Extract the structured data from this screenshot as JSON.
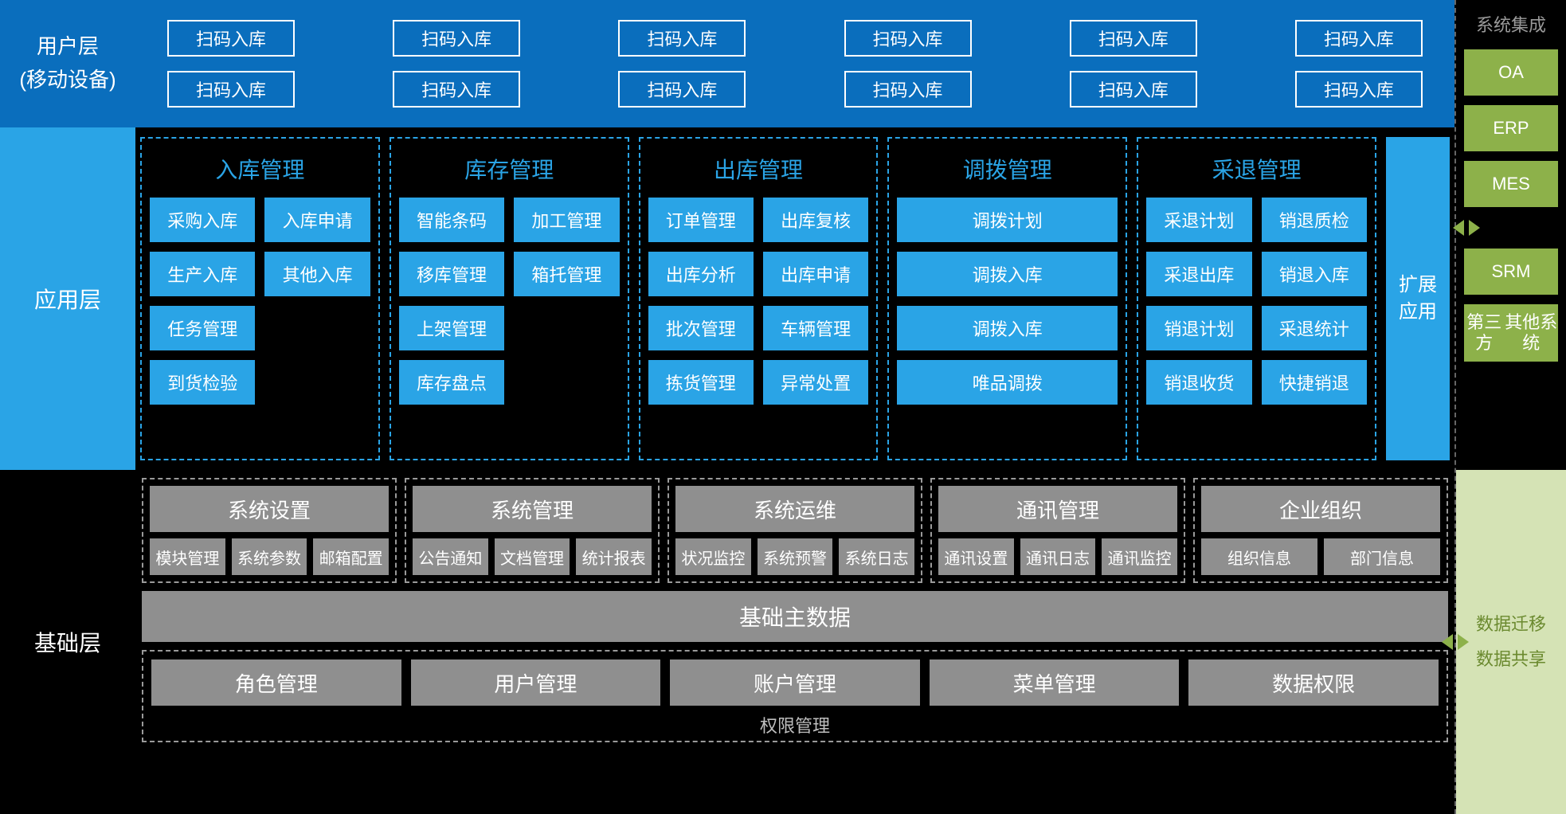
{
  "colors": {
    "blue_dark": "#0a6ebd",
    "blue_light": "#2aa4e6",
    "black": "#000000",
    "gray_box": "#8f8f8f",
    "gray_dash": "#9a9a9a",
    "green": "#8db14a",
    "green_pale": "#d5e3b5"
  },
  "user_layer": {
    "label_line1": "用户层",
    "label_line2": "(移动设备)",
    "scan_label": "扫码入库",
    "cols": 6,
    "rows": 2
  },
  "app_layer": {
    "label": "应用层",
    "modules": [
      {
        "title": "入库管理",
        "layout": "two",
        "items": [
          "采购入库",
          "入库申请",
          "生产入库",
          "其他入库",
          "任务管理",
          "",
          "到货检验",
          ""
        ]
      },
      {
        "title": "库存管理",
        "layout": "two",
        "items": [
          "智能条码",
          "加工管理",
          "移库管理",
          "箱托管理",
          "上架管理",
          "",
          "库存盘点",
          ""
        ]
      },
      {
        "title": "出库管理",
        "layout": "two",
        "items": [
          "订单管理",
          "出库复核",
          "出库分析",
          "出库申请",
          "批次管理",
          "车辆管理",
          "拣货管理",
          "异常处置"
        ]
      },
      {
        "title": "调拨管理",
        "layout": "one",
        "items": [
          "调拨计划",
          "调拨入库",
          "调拨入库",
          "唯品调拨"
        ]
      },
      {
        "title": "采退管理",
        "layout": "two",
        "items": [
          "采退计划",
          "销退质检",
          "采退出库",
          "销退入库",
          "销退计划",
          "采退统计",
          "销退收货",
          "快捷销退"
        ]
      }
    ],
    "extension": "扩展\n应用"
  },
  "base_layer": {
    "label": "基础层",
    "groups": [
      {
        "title": "系统设置",
        "items": [
          "模块管理",
          "系统参数",
          "邮箱配置"
        ]
      },
      {
        "title": "系统管理",
        "items": [
          "公告通知",
          "文档管理",
          "统计报表"
        ]
      },
      {
        "title": "系统运维",
        "items": [
          "状况监控",
          "系统预警",
          "系统日志"
        ]
      },
      {
        "title": "通讯管理",
        "items": [
          "通讯设置",
          "通讯日志",
          "通讯监控"
        ]
      },
      {
        "title": "企业组织",
        "items": [
          "组织信息",
          "部门信息"
        ]
      }
    ],
    "base_data": "基础主数据",
    "perm_title": "权限管理",
    "perm_items": [
      "角色管理",
      "用户管理",
      "账户管理",
      "菜单管理",
      "数据权限"
    ]
  },
  "side": {
    "title": "系统集成",
    "boxes": [
      "OA",
      "ERP",
      "MES",
      "SRM",
      "第三方\n其他系统"
    ],
    "bottom1": "数据迁移",
    "bottom2": "数据共享"
  }
}
